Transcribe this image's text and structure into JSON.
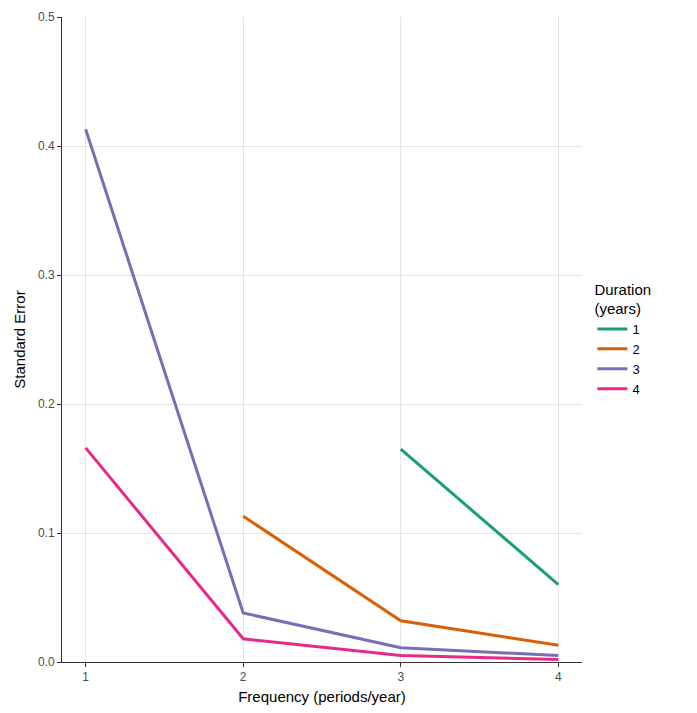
{
  "chart_data": {
    "type": "line",
    "x_label": "Frequency (periods/year)",
    "y_label": "Standard Error",
    "legend_title": "Duration\n(years)",
    "x": [
      1,
      2,
      3,
      4
    ],
    "series": [
      {
        "name": "1",
        "color": "#1B9E77",
        "values": [
          null,
          null,
          0.165,
          0.06
        ]
      },
      {
        "name": "2",
        "color": "#D95F02",
        "values": [
          null,
          0.113,
          0.032,
          0.013
        ]
      },
      {
        "name": "3",
        "color": "#7570B3",
        "values": [
          0.413,
          0.038,
          0.011,
          0.005
        ]
      },
      {
        "name": "4",
        "color": "#E7298A",
        "values": [
          0.166,
          0.018,
          0.005,
          0.002
        ]
      }
    ],
    "xlim": [
      0.85,
      4.15
    ],
    "xticks": [
      1,
      2,
      3,
      4
    ],
    "ylim": [
      0,
      0.5
    ],
    "yticks": [
      {
        "value": 0,
        "label": "0.0"
      },
      0.1,
      0.2,
      0.3,
      0.4,
      0.5
    ],
    "grid": true,
    "legend": "right"
  }
}
